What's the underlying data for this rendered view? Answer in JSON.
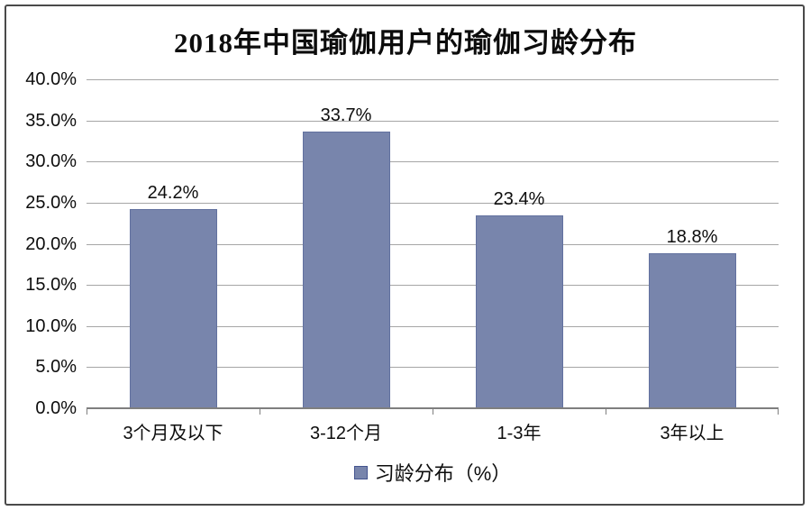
{
  "chart_data": {
    "type": "bar",
    "title": "2018年中国瑜伽用户的瑜伽习龄分布",
    "categories": [
      "3个月及以下",
      "3-12个月",
      "1-3年",
      "3年以上"
    ],
    "values": [
      24.2,
      33.7,
      23.4,
      18.8
    ],
    "value_labels": [
      "24.2%",
      "33.7%",
      "23.4%",
      "18.8%"
    ],
    "series_name": "习龄分布（%）",
    "ylim": [
      0,
      40
    ],
    "y_tick_labels": [
      "40.0%",
      "35.0%",
      "30.0%",
      "25.0%",
      "20.0%",
      "15.0%",
      "10.0%",
      "5.0%",
      "0.0%"
    ],
    "grid": true,
    "legend_position": "bottom",
    "colors": {
      "bar_fill": "#7885ac",
      "bar_border": "#62719f",
      "legend_swatch_border": "#44548f",
      "gridline": "#a6a6a6",
      "axis_line": "#7f7f7f",
      "frame_border": "#4a4a4a",
      "text": "#0d0d0d",
      "background": "#ffffff"
    }
  }
}
